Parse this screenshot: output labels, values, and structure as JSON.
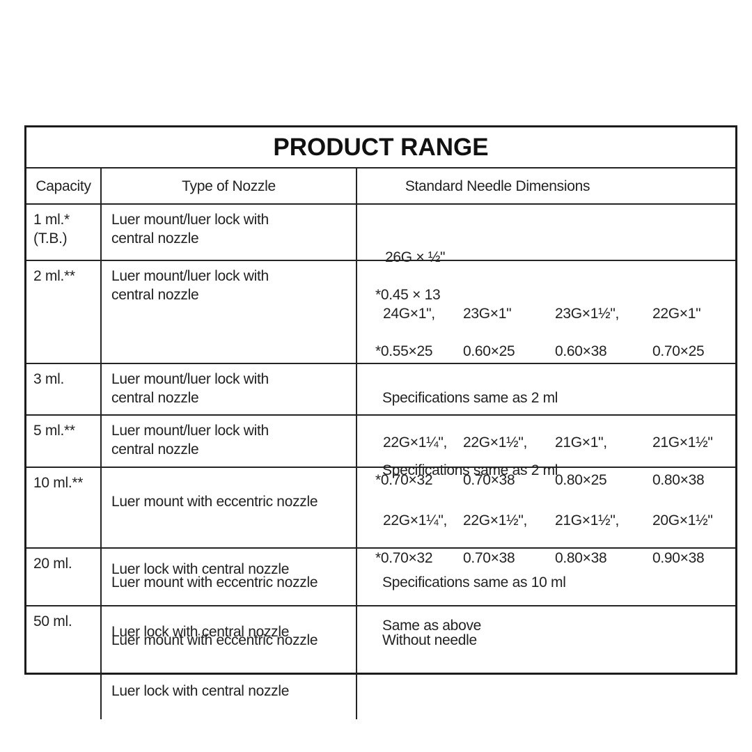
{
  "colors": {
    "background": "#ffffff",
    "border": "#1b1b1b",
    "text": "#222222"
  },
  "table": {
    "title": "PRODUCT RANGE",
    "headers": [
      "Capacity",
      "Type of Nozzle",
      "Standard Needle Dimensions"
    ],
    "rows": [
      {
        "capacity": "1 ml.*\n(T.B.)",
        "nozzle": "Luer mount/luer lock with\ncentral nozzle",
        "dims_line1": "26G × ½\"",
        "dims_line2": "*0.45 × 13"
      },
      {
        "capacity": "2 ml.**",
        "nozzle": "Luer mount/luer lock with\ncentral nozzle",
        "blocks": [
          {
            "gauges": [
              "24G×1\",",
              "23G×1\"",
              "23G×1½\",",
              "22G×1\""
            ],
            "metrics": [
              "*0.55×25",
              "0.60×25",
              "0.60×38",
              "0.70×25"
            ]
          },
          {
            "gauges": [
              "22G×1¼\",",
              "22G×1½\",",
              "21G×1\",",
              "21G×1½\""
            ],
            "metrics": [
              "*0.70×32",
              "0.70×38",
              "0.80×25",
              "0.80×38"
            ]
          }
        ]
      },
      {
        "capacity": "3 ml.",
        "nozzle": "Luer mount/luer lock with\ncentral nozzle",
        "dims_text": "Specifications same as 2 ml"
      },
      {
        "capacity": "5 ml.**",
        "nozzle": "Luer mount/luer lock with\ncentral nozzle",
        "dims_text": "Specifications same as 2 ml"
      },
      {
        "capacity": "10 ml.**",
        "nozzle1": "Luer mount with eccentric nozzle",
        "nozzle2": "Luer lock with central nozzle",
        "block": {
          "gauges": [
            "22G×1¼\",",
            "22G×1½\",",
            "21G×1½\",",
            "20G×1½\""
          ],
          "metrics": [
            "*0.70×32",
            "0.70×38",
            "0.80×38",
            "0.90×38"
          ]
        },
        "dims_text2": "Same as above"
      },
      {
        "capacity": "20 ml.",
        "nozzle1": "Luer mount with eccentric nozzle",
        "nozzle2": "Luer lock with central nozzle",
        "dims_text": "Specifications same as 10 ml"
      },
      {
        "capacity": "50 ml.",
        "nozzle1": "Luer mount with eccentric nozzle",
        "nozzle2": "Luer lock with central nozzle",
        "dims_text": "Without needle"
      }
    ]
  }
}
